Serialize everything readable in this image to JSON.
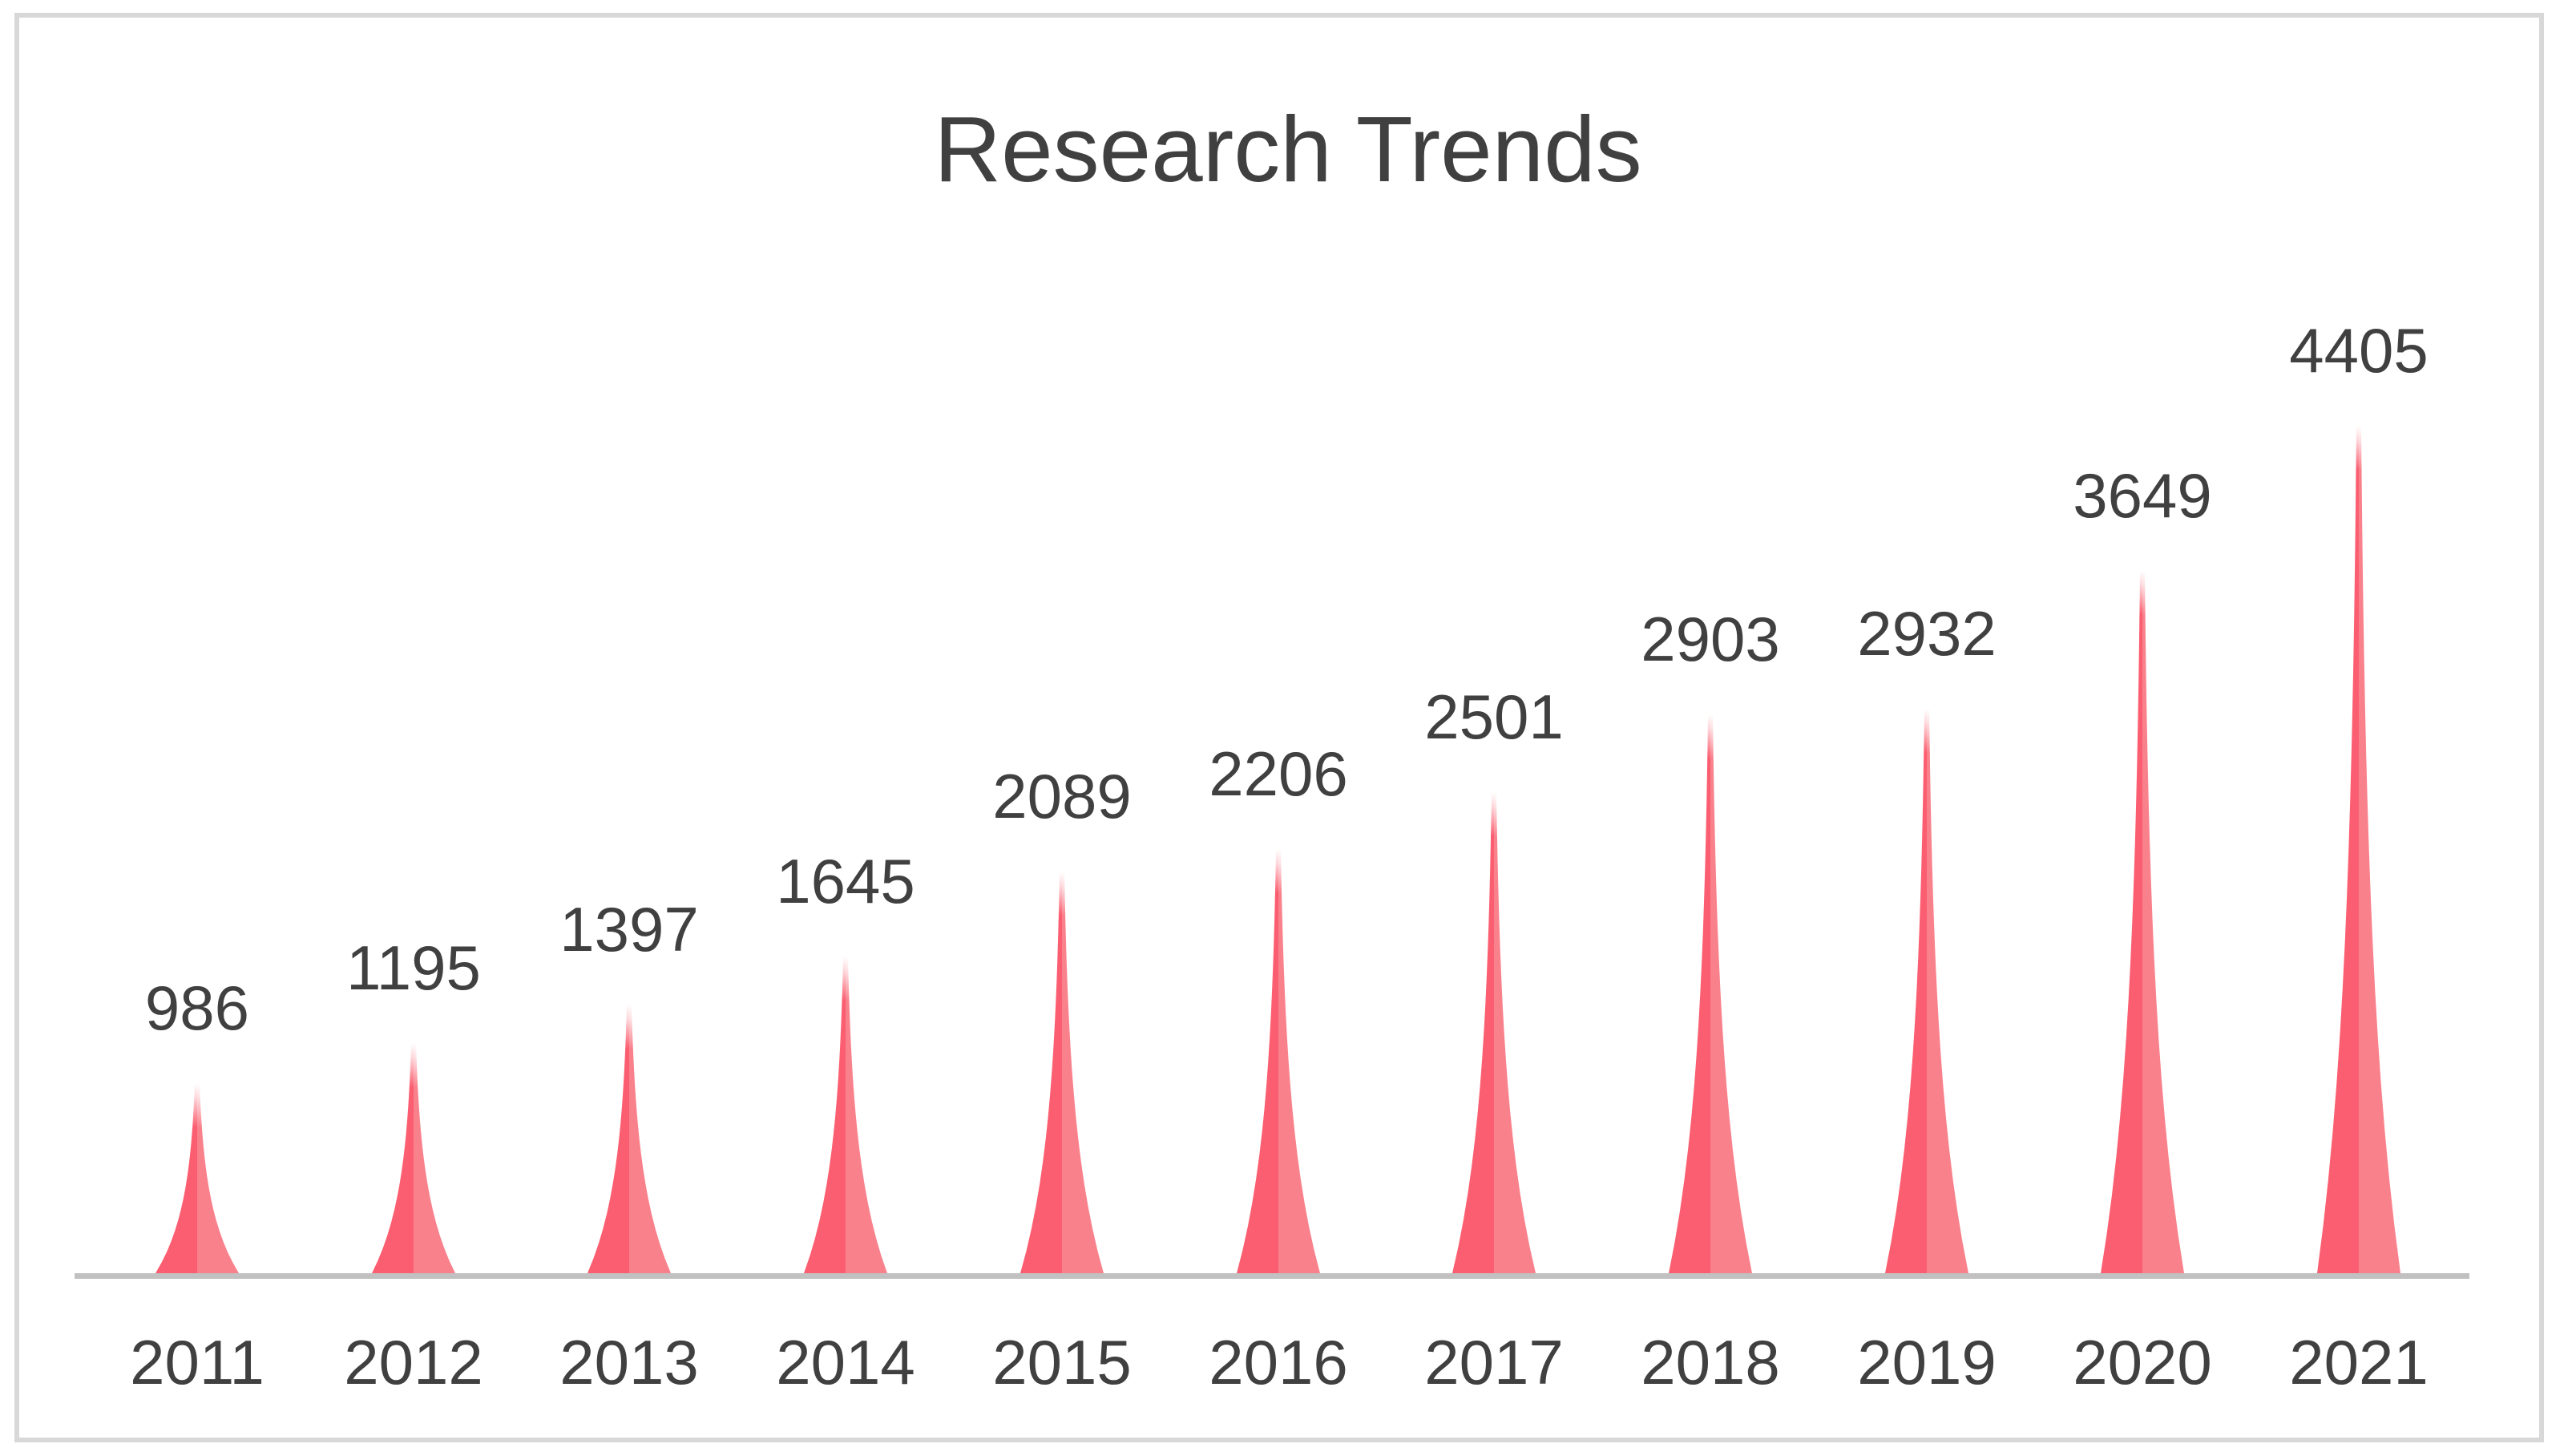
{
  "chart_data": {
    "type": "bar",
    "variant": "spike-peaks",
    "title": "Research Trends",
    "categories": [
      "2011",
      "2012",
      "2013",
      "2014",
      "2015",
      "2016",
      "2017",
      "2018",
      "2019",
      "2020",
      "2021"
    ],
    "values": [
      986,
      1195,
      1397,
      1645,
      2089,
      2206,
      2501,
      2903,
      2932,
      3649,
      4405
    ],
    "xlabel": "",
    "ylabel": "",
    "ylim": [
      0,
      4600
    ],
    "grid": false,
    "legend": "none",
    "data_labels": "above each peak",
    "value_axis_visible": false
  },
  "colors": {
    "spike_left_half": "#fb5e70",
    "spike_right_half": "#f9818c",
    "axis_line": "#c1c1c1",
    "frame_border": "#d8d8d8",
    "text": "#404040",
    "background": "#ffffff"
  }
}
